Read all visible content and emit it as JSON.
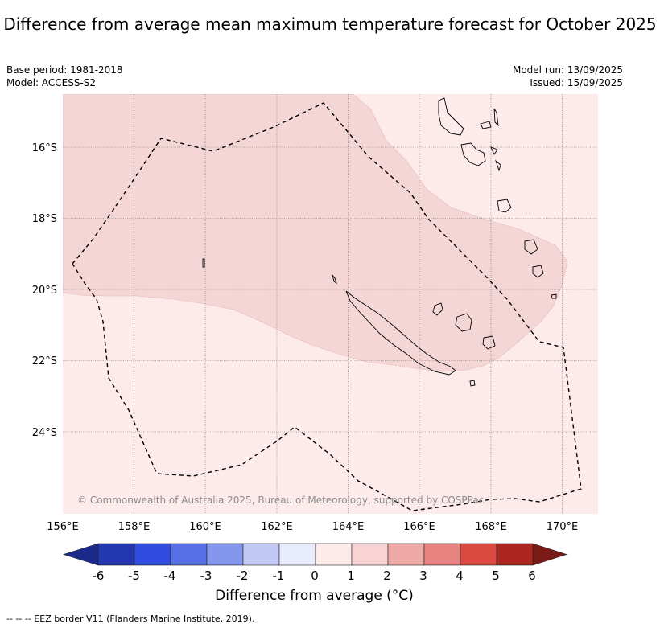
{
  "title": "Difference from average mean maximum temperature forecast for October 2025",
  "base_period": "Base period: 1981-2018",
  "model": "Model: ACCESS-S2",
  "model_run": "Model run: 13/09/2025",
  "issued": "Issued: 15/09/2025",
  "copyright": "© Commonwealth of Australia 2025, Bureau of Meteorology, supported by COSPPac",
  "lon_ticks": [
    "156°E",
    "158°E",
    "160°E",
    "162°E",
    "164°E",
    "166°E",
    "168°E",
    "170°E"
  ],
  "lat_ticks": [
    "16°S",
    "18°S",
    "20°S",
    "22°S",
    "24°S"
  ],
  "colorbar": {
    "label": "Difference from average (°C)",
    "ticks": [
      "-6",
      "-5",
      "-4",
      "-3",
      "-2",
      "-1",
      "0",
      "1",
      "2",
      "3",
      "4",
      "5",
      "6"
    ],
    "colors": [
      "#1b2a8a",
      "#2338b0",
      "#2f4ddf",
      "#5870e6",
      "#8597ec",
      "#c2c9f4",
      "#e8ebfb",
      "#fdebea",
      "#f7d3d3",
      "#efa9a7",
      "#e7847f",
      "#dc4a3f",
      "#ad2720",
      "#7a1a16"
    ]
  },
  "legend_note": "-- -- -- EEZ border V11 (Flanders Marine Institute, 2019).",
  "colors": {
    "light_anomaly": "#fcebea",
    "anomaly_1_2": "#f5d6d6",
    "eez_border": "#000000"
  }
}
